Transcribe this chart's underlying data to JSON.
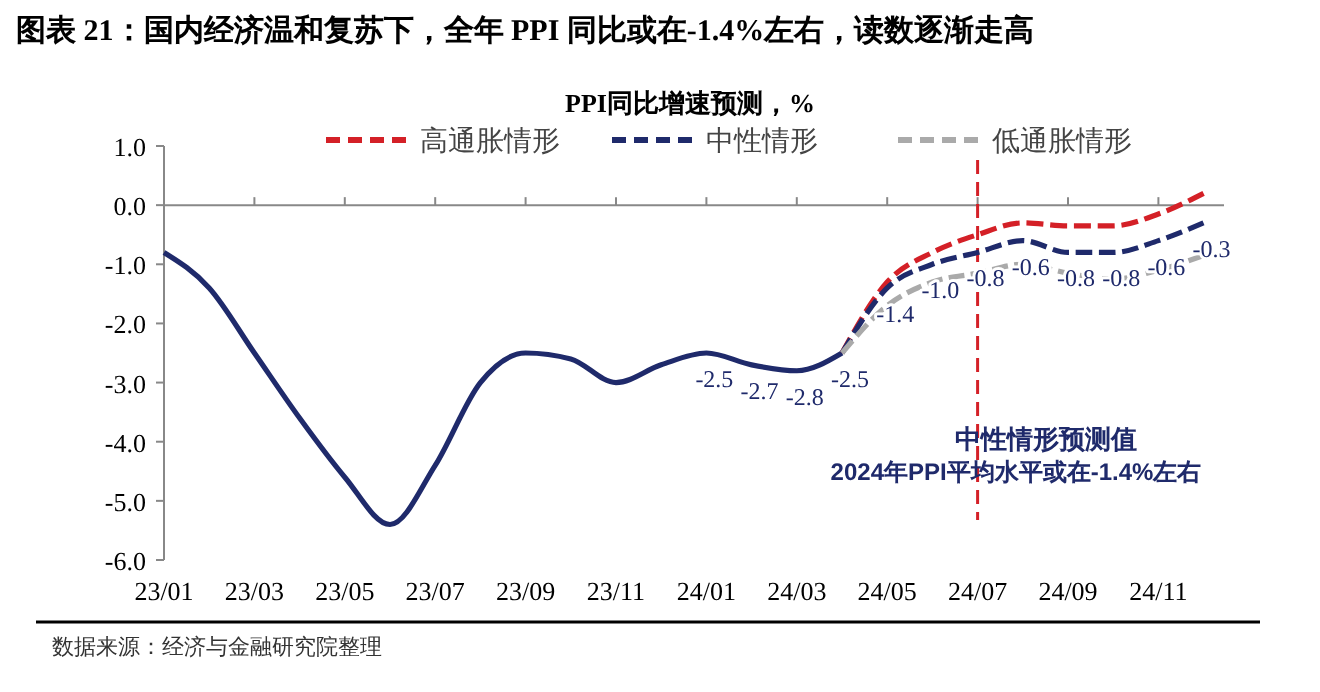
{
  "chart_data": {
    "type": "line",
    "title": "图表 21：国内经济温和复苏下，全年 PPI 同比或在-1.4%左右，读数逐渐走高",
    "subtitle": "PPI同比增速预测，%",
    "categories": [
      "23/01",
      null,
      "23/03",
      null,
      "23/05",
      null,
      "23/07",
      null,
      "23/09",
      null,
      "23/11",
      null,
      "24/01",
      null,
      "24/03",
      null,
      "24/05",
      null,
      "24/07",
      null,
      "24/09",
      null,
      "24/11",
      null
    ],
    "series": [
      {
        "color": "#1f2a6b",
        "line_style": "solid",
        "values": [
          -0.8,
          -1.4,
          -2.5,
          -3.6,
          -4.6,
          -5.4,
          -4.4,
          -3.0,
          -2.5,
          -2.6,
          -3.0,
          -2.7,
          -2.5,
          -2.7,
          -2.8,
          -2.5,
          null,
          null,
          null,
          null,
          null,
          null,
          null,
          null
        ],
        "value_labels": [
          null,
          null,
          null,
          null,
          null,
          null,
          null,
          null,
          null,
          null,
          null,
          null,
          "-2.5",
          "-2.7",
          "-2.8",
          "-2.5",
          null,
          null,
          null,
          null,
          null,
          null,
          null,
          null
        ]
      },
      {
        "name": "高通胀情形",
        "color": "#d42027",
        "line_style": "dashed",
        "values": [
          null,
          null,
          null,
          null,
          null,
          null,
          null,
          null,
          null,
          null,
          null,
          null,
          null,
          null,
          null,
          -2.5,
          -1.3,
          -0.8,
          -0.5,
          -0.3,
          -0.35,
          -0.35,
          -0.15,
          0.2
        ]
      },
      {
        "name": "中性情形",
        "color": "#1f2a6b",
        "line_style": "dashed",
        "values": [
          null,
          null,
          null,
          null,
          null,
          null,
          null,
          null,
          null,
          null,
          null,
          null,
          null,
          null,
          null,
          -2.5,
          -1.4,
          -1.0,
          -0.8,
          -0.6,
          -0.8,
          -0.8,
          -0.6,
          -0.3
        ],
        "value_labels": [
          null,
          null,
          null,
          null,
          null,
          null,
          null,
          null,
          null,
          null,
          null,
          null,
          null,
          null,
          null,
          null,
          "-1.4",
          "-1.0",
          "-0.8",
          "-0.6",
          "-0.8",
          "-0.8",
          "-0.6",
          "-0.3"
        ]
      },
      {
        "name": "低通胀情形",
        "color": "#aaaaaa",
        "line_style": "dashed",
        "values": [
          null,
          null,
          null,
          null,
          null,
          null,
          null,
          null,
          null,
          null,
          null,
          null,
          null,
          null,
          null,
          -2.5,
          -1.7,
          -1.3,
          -1.15,
          -1.0,
          -1.15,
          -1.25,
          -1.1,
          -0.85
        ]
      }
    ],
    "ylim": [
      -6,
      1
    ],
    "yticks": [
      {
        "value": 1,
        "label": "1.0"
      },
      {
        "value": 0,
        "label": "0.0"
      },
      {
        "value": -1,
        "label": "-1.0"
      },
      {
        "value": -2,
        "label": "-2.0"
      },
      {
        "value": -3,
        "label": "-3.0"
      },
      {
        "value": -4,
        "label": "-4.0"
      },
      {
        "value": -5,
        "label": "-5.0"
      },
      {
        "value": -6,
        "label": "-6.0"
      }
    ],
    "ref_lines": [
      {
        "axis": "x",
        "value": "24/07",
        "color": "#d42027",
        "line_style": "dashed"
      }
    ],
    "annotations": [
      "中性情形预测值",
      "2024年PPI平均水平或在-1.4%左右",
      "数据来源：经济与金融研究院整理"
    ],
    "legend": "top",
    "grid": false,
    "marker": "none"
  }
}
